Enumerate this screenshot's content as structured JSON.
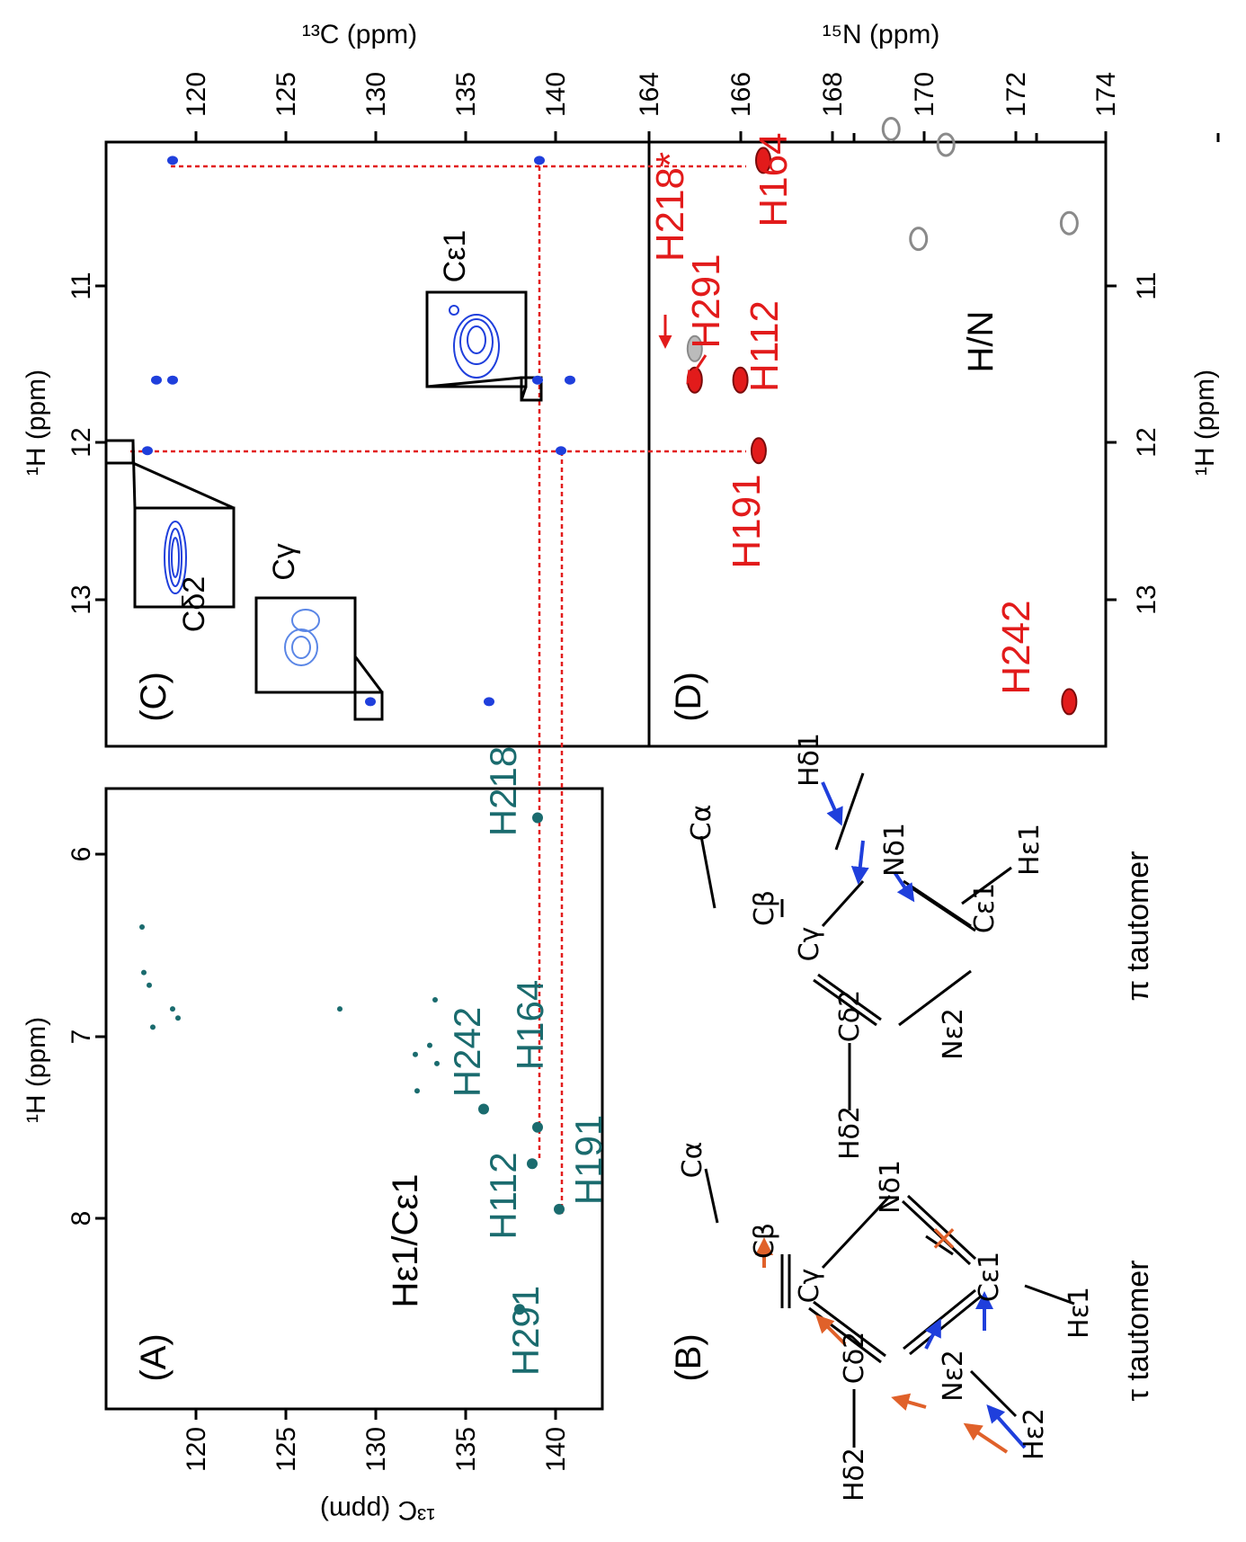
{
  "panels": {
    "A": {
      "label": "(A)",
      "annotation": "Hε1/Cε1"
    },
    "B": {
      "label": "(B)"
    },
    "C": {
      "label": "(C)"
    },
    "D": {
      "label": "(D)",
      "annotation": "H/N"
    }
  },
  "colors": {
    "teal": "#1a6b6e",
    "blue": "#1f3fdc",
    "red": "#e21b1b",
    "orange": "#e0612a",
    "grey": "#8a8a8a"
  },
  "axes": {
    "h1_label_A": "¹H (ppm)",
    "h1_label_C": "¹H (ppm)",
    "h1_label_D": "¹H (ppm)",
    "c13_label_A": "¹³C (ppm)",
    "c13_label_C": "¹³C (ppm)",
    "n15_label_D": "¹⁵N (ppm)",
    "h1_ticks_A": [
      "6",
      "7",
      "8"
    ],
    "h1_ticks_CD": [
      "11",
      "12",
      "13"
    ],
    "c13_ticks": [
      "120",
      "125",
      "130",
      "135",
      "140"
    ],
    "n15_ticks": [
      "164",
      "166",
      "168",
      "170",
      "172",
      "174"
    ]
  },
  "chart_data": [
    {
      "type": "scatter",
      "panel": "A",
      "xlabel": "¹H (ppm)",
      "ylabel": "¹³C (ppm)",
      "xlim": [
        5.5,
        8.8
      ],
      "ylim": [
        115,
        143
      ],
      "labeled_peaks": [
        {
          "name": "H218",
          "x": 5.8,
          "y": 139.0
        },
        {
          "name": "H164",
          "x": 7.5,
          "y": 139.0
        },
        {
          "name": "H242",
          "x": 7.4,
          "y": 136.0
        },
        {
          "name": "H112",
          "x": 7.7,
          "y": 138.7
        },
        {
          "name": "H191",
          "x": 7.95,
          "y": 140.2
        },
        {
          "name": "H291",
          "x": 8.5,
          "y": 138.0
        }
      ],
      "minor_peaks": [
        {
          "x": 6.4,
          "y": 117.0
        },
        {
          "x": 6.65,
          "y": 117.1
        },
        {
          "x": 6.72,
          "y": 117.4
        },
        {
          "x": 6.85,
          "y": 118.7
        },
        {
          "x": 6.9,
          "y": 119.0
        },
        {
          "x": 6.95,
          "y": 117.6
        },
        {
          "x": 6.85,
          "y": 128.0
        },
        {
          "x": 6.8,
          "y": 133.3
        },
        {
          "x": 7.05,
          "y": 133.0
        },
        {
          "x": 7.1,
          "y": 132.2
        },
        {
          "x": 7.15,
          "y": 133.4
        },
        {
          "x": 7.3,
          "y": 132.3
        }
      ]
    },
    {
      "type": "scatter",
      "panel": "C",
      "xlabel": "¹H (ppm)",
      "ylabel": "¹³C (ppm)",
      "xlim": [
        10.0,
        13.8
      ],
      "ylim": [
        117.0,
        143.0
      ],
      "peaks": [
        {
          "x": 10.2,
          "y": 118.7
        },
        {
          "x": 10.2,
          "y": 139.1
        },
        {
          "x": 11.6,
          "y": 117.8
        },
        {
          "x": 11.6,
          "y": 118.7
        },
        {
          "x": 11.6,
          "y": 139.0
        },
        {
          "x": 11.6,
          "y": 140.8
        },
        {
          "x": 12.05,
          "y": 117.3
        },
        {
          "x": 12.05,
          "y": 140.3
        },
        {
          "x": 13.65,
          "y": 129.7
        },
        {
          "x": 13.65,
          "y": 136.3
        }
      ],
      "insets": [
        {
          "label": "Cδ2",
          "x": 12.05,
          "y": 117.3
        },
        {
          "label": "Cγ",
          "x": 13.65,
          "y": 129.7
        },
        {
          "label": "Cε1",
          "x": 11.6,
          "y": 139.0
        }
      ]
    },
    {
      "type": "scatter",
      "panel": "D",
      "xlabel": "¹H (ppm)",
      "ylabel": "¹⁵N (ppm)",
      "xlim": [
        10.0,
        13.8
      ],
      "ylim": [
        164,
        175
      ],
      "labeled_peaks": [
        {
          "name": "H218*",
          "x": 11.4,
          "y": 165.0
        },
        {
          "name": "H291",
          "x": 11.6,
          "y": 165.0
        },
        {
          "name": "H112",
          "x": 11.6,
          "y": 166.0
        },
        {
          "name": "H164",
          "x": 10.2,
          "y": 166.5
        },
        {
          "name": "H191",
          "x": 12.05,
          "y": 166.4
        },
        {
          "name": "H242",
          "x": 13.65,
          "y": 173.2
        }
      ],
      "grey_peaks": [
        {
          "x": 10.0,
          "y": 169.3
        },
        {
          "x": 10.1,
          "y": 170.5
        },
        {
          "x": 10.6,
          "y": 173.2
        },
        {
          "x": 10.7,
          "y": 169.9
        }
      ]
    }
  ],
  "structures": {
    "tau": {
      "caption": "τ tautomer",
      "atoms": {
        "Ca": "Cα",
        "Cb": "Cβ",
        "Cg": "Cγ",
        "Cd2": "Cδ2",
        "Hd2": "Hδ2",
        "Nd1": "Nδ1",
        "Ce1": "Cε1",
        "He1": "Hε1",
        "Ne2": "Nε2",
        "He2": "Hε2"
      }
    },
    "pi": {
      "caption": "π tautomer",
      "atoms": {
        "Ca": "Cα",
        "Cb": "Cβ",
        "Cg": "Cγ",
        "Cd2": "Cδ2",
        "Hd2": "Hδ2",
        "Nd1": "Nδ1",
        "Hd1": "Hδ1",
        "Ce1": "Cε1",
        "He1": "Hε1",
        "Ne2": "Nε2"
      }
    }
  }
}
